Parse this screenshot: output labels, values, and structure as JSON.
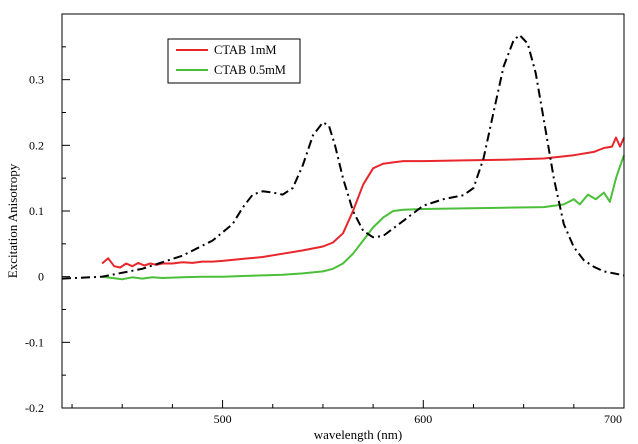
{
  "chart_data": {
    "type": "line",
    "title": "",
    "xlabel": "wavelength (nm)",
    "ylabel": "Excitation Anisotropy",
    "xlim": [
      420,
      700
    ],
    "ylim": [
      -0.2,
      0.4
    ],
    "x_ticks": [
      500,
      600,
      700
    ],
    "y_ticks": [
      -0.2,
      -0.1,
      0,
      0.1,
      0.2,
      0.3
    ],
    "y_tick_labels": [
      "-0.2",
      "-0.1",
      "0",
      "0.1",
      "0.2",
      "0.3"
    ],
    "grid": false,
    "legend_position": "top-left",
    "series": [
      {
        "name": "CTAB 1mM",
        "color": "#e8262b",
        "style": "solid",
        "points": [
          [
            440,
            0.02
          ],
          [
            443,
            0.028
          ],
          [
            446,
            0.016
          ],
          [
            449,
            0.014
          ],
          [
            452,
            0.02
          ],
          [
            455,
            0.016
          ],
          [
            458,
            0.021
          ],
          [
            461,
            0.017
          ],
          [
            464,
            0.02
          ],
          [
            467,
            0.018
          ],
          [
            470,
            0.02
          ],
          [
            475,
            0.02
          ],
          [
            480,
            0.022
          ],
          [
            485,
            0.021
          ],
          [
            490,
            0.023
          ],
          [
            495,
            0.023
          ],
          [
            500,
            0.024
          ],
          [
            510,
            0.027
          ],
          [
            520,
            0.03
          ],
          [
            530,
            0.035
          ],
          [
            540,
            0.04
          ],
          [
            550,
            0.046
          ],
          [
            555,
            0.052
          ],
          [
            560,
            0.066
          ],
          [
            565,
            0.1
          ],
          [
            570,
            0.14
          ],
          [
            575,
            0.165
          ],
          [
            580,
            0.172
          ],
          [
            585,
            0.174
          ],
          [
            590,
            0.176
          ],
          [
            600,
            0.176
          ],
          [
            620,
            0.177
          ],
          [
            640,
            0.178
          ],
          [
            660,
            0.18
          ],
          [
            675,
            0.185
          ],
          [
            685,
            0.19
          ],
          [
            690,
            0.196
          ],
          [
            694,
            0.198
          ],
          [
            696,
            0.212
          ],
          [
            698,
            0.198
          ],
          [
            700,
            0.212
          ]
        ]
      },
      {
        "name": "CTAB 0.5mM",
        "color": "#4cbf3a",
        "style": "solid",
        "points": [
          [
            440,
            0.0
          ],
          [
            445,
            -0.002
          ],
          [
            450,
            -0.004
          ],
          [
            455,
            -0.001
          ],
          [
            460,
            -0.003
          ],
          [
            465,
            -0.001
          ],
          [
            470,
            -0.002
          ],
          [
            480,
            -0.001
          ],
          [
            490,
            0.0
          ],
          [
            500,
            0.0
          ],
          [
            510,
            0.001
          ],
          [
            520,
            0.002
          ],
          [
            530,
            0.003
          ],
          [
            540,
            0.005
          ],
          [
            550,
            0.008
          ],
          [
            555,
            0.012
          ],
          [
            560,
            0.02
          ],
          [
            565,
            0.035
          ],
          [
            570,
            0.055
          ],
          [
            575,
            0.075
          ],
          [
            580,
            0.09
          ],
          [
            585,
            0.1
          ],
          [
            590,
            0.102
          ],
          [
            600,
            0.103
          ],
          [
            620,
            0.104
          ],
          [
            640,
            0.105
          ],
          [
            660,
            0.106
          ],
          [
            670,
            0.11
          ],
          [
            675,
            0.118
          ],
          [
            678,
            0.11
          ],
          [
            682,
            0.125
          ],
          [
            686,
            0.118
          ],
          [
            690,
            0.128
          ],
          [
            693,
            0.114
          ],
          [
            696,
            0.15
          ],
          [
            698,
            0.168
          ],
          [
            700,
            0.185
          ]
        ]
      },
      {
        "name": "",
        "color": "#000000",
        "style": "dash-dot",
        "points": [
          [
            420,
            -0.003
          ],
          [
            440,
            0.0
          ],
          [
            460,
            0.012
          ],
          [
            480,
            0.032
          ],
          [
            495,
            0.055
          ],
          [
            505,
            0.08
          ],
          [
            510,
            0.105
          ],
          [
            515,
            0.125
          ],
          [
            520,
            0.13
          ],
          [
            525,
            0.128
          ],
          [
            530,
            0.125
          ],
          [
            535,
            0.135
          ],
          [
            540,
            0.17
          ],
          [
            545,
            0.215
          ],
          [
            550,
            0.235
          ],
          [
            553,
            0.23
          ],
          [
            556,
            0.2
          ],
          [
            560,
            0.15
          ],
          [
            565,
            0.1
          ],
          [
            570,
            0.07
          ],
          [
            575,
            0.06
          ],
          [
            580,
            0.062
          ],
          [
            590,
            0.085
          ],
          [
            600,
            0.108
          ],
          [
            610,
            0.118
          ],
          [
            620,
            0.124
          ],
          [
            625,
            0.135
          ],
          [
            630,
            0.18
          ],
          [
            635,
            0.25
          ],
          [
            640,
            0.32
          ],
          [
            645,
            0.36
          ],
          [
            648,
            0.368
          ],
          [
            652,
            0.355
          ],
          [
            656,
            0.31
          ],
          [
            660,
            0.24
          ],
          [
            665,
            0.15
          ],
          [
            670,
            0.08
          ],
          [
            675,
            0.045
          ],
          [
            680,
            0.025
          ],
          [
            685,
            0.015
          ],
          [
            690,
            0.008
          ],
          [
            695,
            0.005
          ],
          [
            700,
            0.002
          ]
        ]
      }
    ]
  }
}
